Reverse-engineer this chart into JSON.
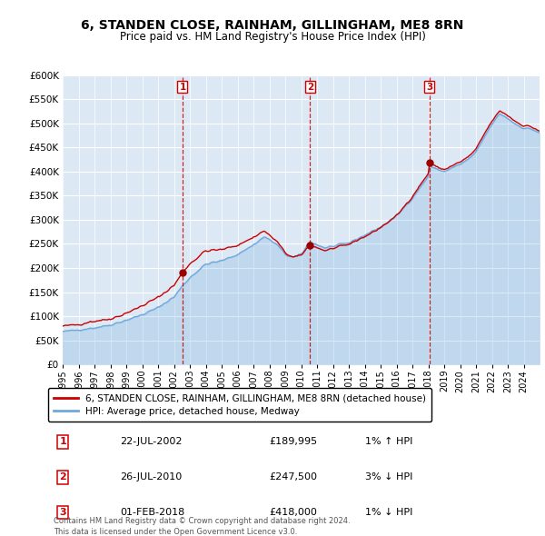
{
  "title": "6, STANDEN CLOSE, RAINHAM, GILLINGHAM, ME8 8RN",
  "subtitle": "Price paid vs. HM Land Registry's House Price Index (HPI)",
  "ylim": [
    0,
    600000
  ],
  "yticks": [
    0,
    50000,
    100000,
    150000,
    200000,
    250000,
    300000,
    350000,
    400000,
    450000,
    500000,
    550000,
    600000
  ],
  "xlim_start": 1995.0,
  "xlim_end": 2025.0,
  "bg_color": "#dce9f5",
  "hpi_color": "#6fa8dc",
  "price_color": "#cc0000",
  "sale_marker_color": "#cc0000",
  "legend_label_price": "6, STANDEN CLOSE, RAINHAM, GILLINGHAM, ME8 8RN (detached house)",
  "legend_label_hpi": "HPI: Average price, detached house, Medway",
  "sales": [
    {
      "num": 1,
      "date": "22-JUL-2002",
      "price": 189995,
      "hpi_pct": "1% ↑ HPI",
      "year": 2002.54
    },
    {
      "num": 2,
      "date": "26-JUL-2010",
      "price": 247500,
      "hpi_pct": "3% ↓ HPI",
      "year": 2010.56
    },
    {
      "num": 3,
      "date": "01-FEB-2018",
      "price": 418000,
      "hpi_pct": "1% ↓ HPI",
      "year": 2018.08
    }
  ],
  "footnote1": "Contains HM Land Registry data © Crown copyright and database right 2024.",
  "footnote2": "This data is licensed under the Open Government Licence v3.0."
}
